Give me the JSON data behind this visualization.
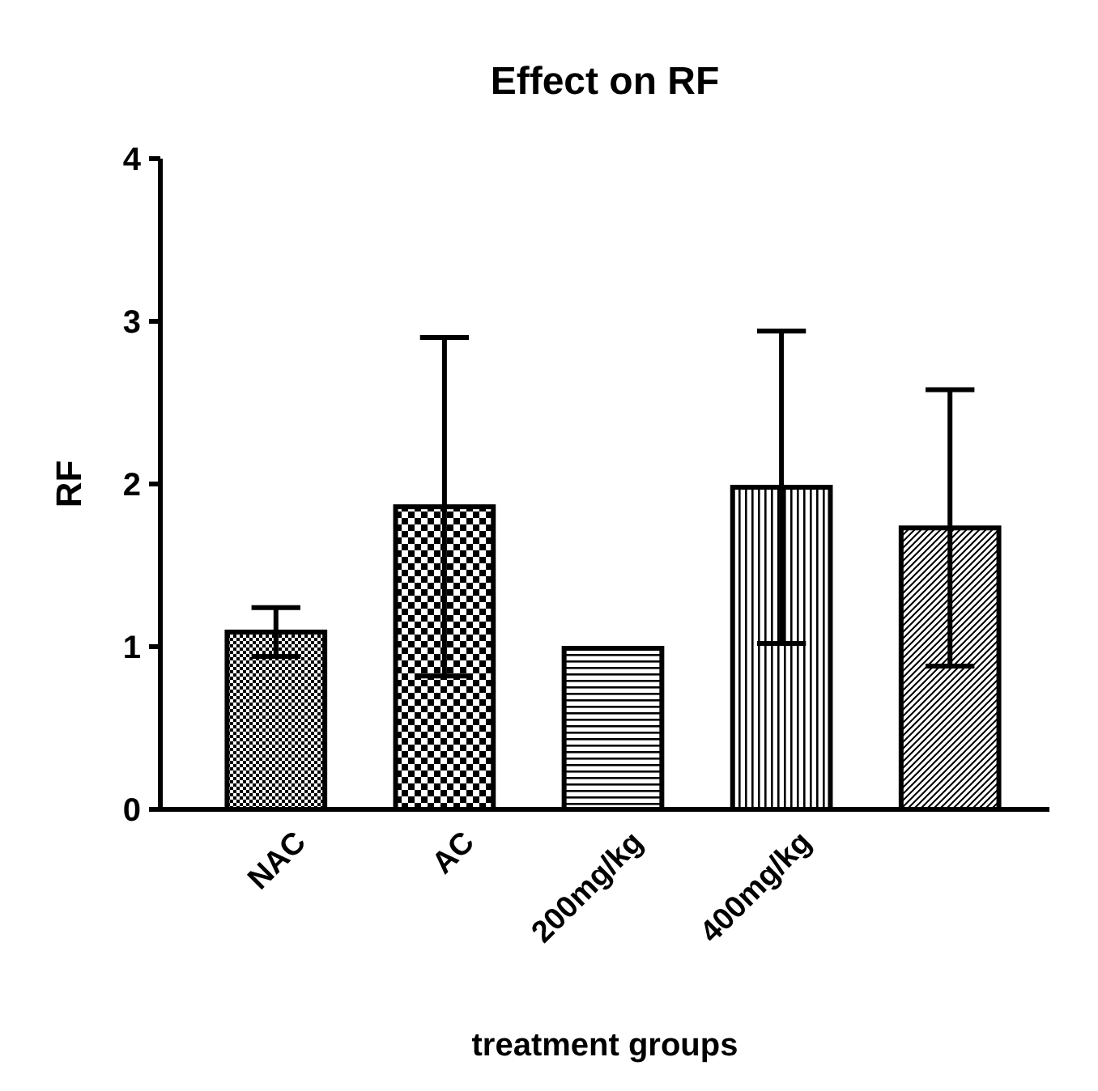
{
  "chart_data": {
    "type": "bar",
    "title": "Effect on RF",
    "xlabel": "treatment groups",
    "ylabel": "RF",
    "categories": [
      "NAC",
      "AC",
      "200mg/kg",
      "400mg/kg",
      null
    ],
    "values": [
      1.09,
      1.86,
      0.99,
      1.98,
      1.73
    ],
    "errors": [
      0.15,
      1.04,
      null,
      0.96,
      0.85
    ],
    "color": "#000000",
    "ylim": [
      0,
      4
    ],
    "yticks": [
      0,
      1,
      2,
      3,
      4
    ],
    "grid": false
  }
}
